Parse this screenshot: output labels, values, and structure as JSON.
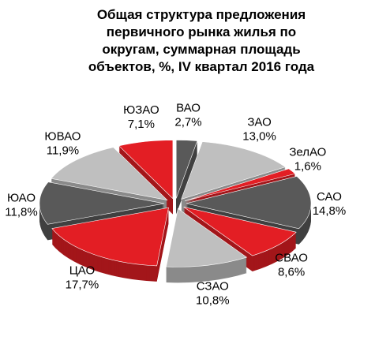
{
  "chart_data": {
    "type": "pie",
    "title": [
      "Общая структура предложения",
      "первичного рынка жилья по",
      "округам, суммарная площадь",
      "объектов, %, IV квартал 2016 года"
    ],
    "categories": [
      "ВАО",
      "ЗАО",
      "ЗелАО",
      "САО",
      "СВАО",
      "СЗАО",
      "ЦАО",
      "ЮАО",
      "ЮВАО",
      "ЮЗАО"
    ],
    "values": [
      2.7,
      13.0,
      1.6,
      14.8,
      8.6,
      10.8,
      17.7,
      11.8,
      11.9,
      7.1
    ],
    "value_labels": [
      "2,7%",
      "13,0%",
      "1,6%",
      "14,8%",
      "8,6%",
      "10,8%",
      "17,7%",
      "11,8%",
      "11,9%",
      "7,1%"
    ],
    "colors": [
      "#595959",
      "#bfbfbf",
      "#e31e24",
      "#595959",
      "#e31e24",
      "#bfbfbf",
      "#e31e24",
      "#595959",
      "#bfbfbf",
      "#e31e24"
    ]
  }
}
